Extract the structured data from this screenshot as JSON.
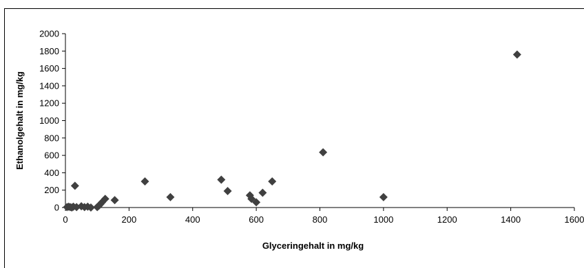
{
  "chart_data": {
    "type": "scatter",
    "xlabel": "Glyceringehalt in mg/kg",
    "ylabel": "Ethanolgehalt in mg/kg",
    "xlim": [
      0,
      1600
    ],
    "ylim": [
      0,
      2000
    ],
    "x_ticks": [
      0,
      200,
      400,
      600,
      800,
      1000,
      1200,
      1400,
      1600
    ],
    "y_ticks": [
      0,
      200,
      400,
      600,
      800,
      1000,
      1200,
      1400,
      1600,
      1800,
      2000
    ],
    "grid": false,
    "marker": "diamond",
    "marker_color": "#404040",
    "points": [
      {
        "x": 5,
        "y": 5
      },
      {
        "x": 10,
        "y": 10
      },
      {
        "x": 15,
        "y": 5
      },
      {
        "x": 20,
        "y": 0
      },
      {
        "x": 25,
        "y": 10
      },
      {
        "x": 30,
        "y": 250
      },
      {
        "x": 35,
        "y": 5
      },
      {
        "x": 50,
        "y": 15
      },
      {
        "x": 60,
        "y": 5
      },
      {
        "x": 70,
        "y": 10
      },
      {
        "x": 80,
        "y": 0
      },
      {
        "x": 100,
        "y": 5
      },
      {
        "x": 105,
        "y": 20
      },
      {
        "x": 110,
        "y": 40
      },
      {
        "x": 115,
        "y": 60
      },
      {
        "x": 125,
        "y": 100
      },
      {
        "x": 155,
        "y": 85
      },
      {
        "x": 250,
        "y": 300
      },
      {
        "x": 330,
        "y": 120
      },
      {
        "x": 490,
        "y": 320
      },
      {
        "x": 510,
        "y": 190
      },
      {
        "x": 580,
        "y": 140
      },
      {
        "x": 585,
        "y": 100
      },
      {
        "x": 600,
        "y": 60
      },
      {
        "x": 620,
        "y": 170
      },
      {
        "x": 650,
        "y": 300
      },
      {
        "x": 810,
        "y": 635
      },
      {
        "x": 1000,
        "y": 120
      },
      {
        "x": 1420,
        "y": 1760
      }
    ]
  }
}
